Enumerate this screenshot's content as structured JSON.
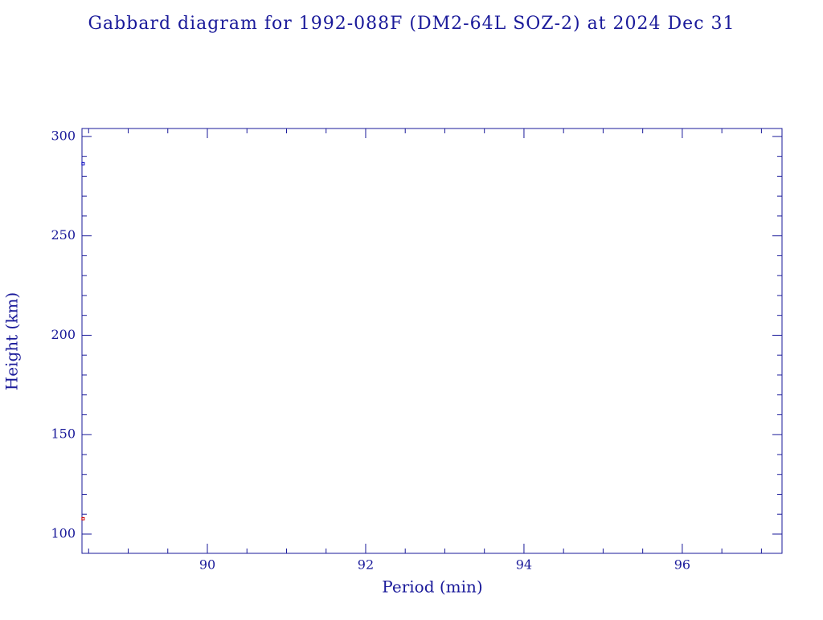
{
  "chart_data": {
    "type": "scatter",
    "title": "Gabbard diagram for 1992-088F (DM2-64L SOZ-2) at 2024 Dec 31",
    "x_label": "Period (min)",
    "y_label": "Height (km)",
    "series": [
      {
        "color": "#0000c0",
        "x": [
          88.43
        ],
        "values": [
          286.3
        ]
      },
      {
        "color": "#d00000",
        "x": [
          88.43
        ],
        "values": [
          107.7
        ]
      }
    ],
    "xlim": [
      88.416,
      97.26
    ],
    "ylim": [
      90.3,
      304
    ],
    "xticks": [
      90,
      92,
      94,
      96
    ],
    "xminorticks": [
      88.5,
      89,
      89.5,
      90.5,
      91,
      91.5,
      92.5,
      93,
      93.5,
      94.5,
      95,
      95.5,
      96.5,
      97
    ],
    "yticks": [
      100,
      150,
      200,
      250,
      300
    ],
    "yminorticks": [
      110,
      120,
      130,
      140,
      160,
      170,
      180,
      190,
      210,
      220,
      230,
      240,
      260,
      270,
      280,
      290
    ],
    "axis_color": "#1a1a9a"
  }
}
